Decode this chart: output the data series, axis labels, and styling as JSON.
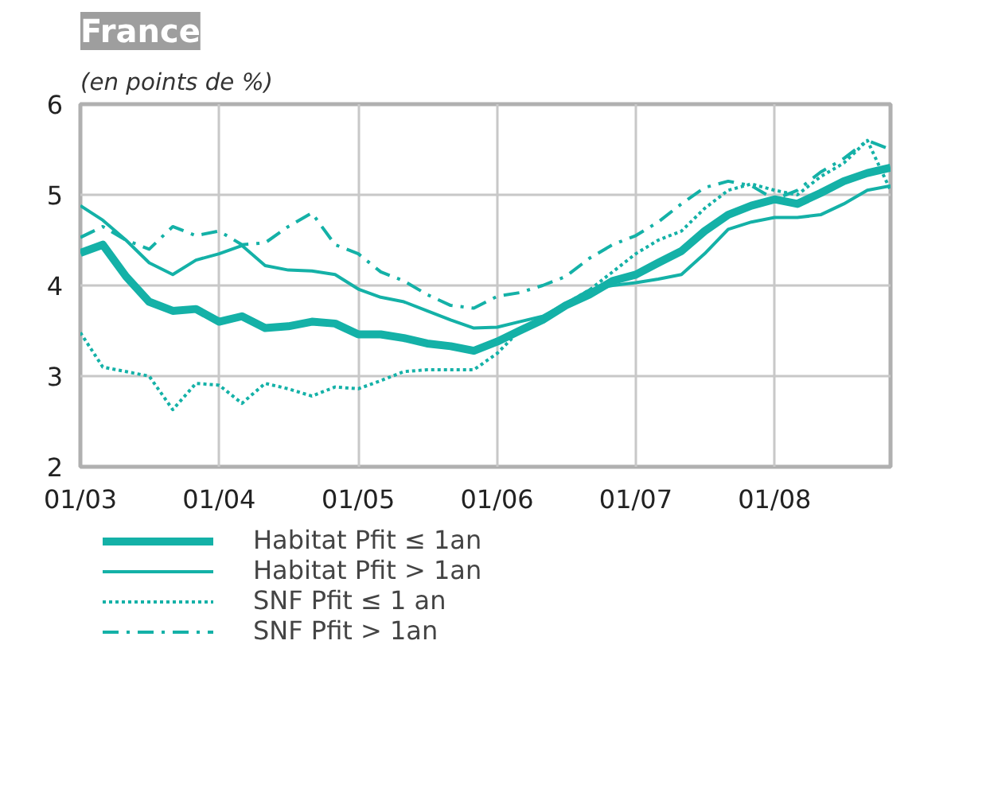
{
  "chart_data": {
    "type": "line",
    "title": "France",
    "subtitle": "(en points de %)",
    "x": [
      "2003-01",
      "2003-03",
      "2003-05",
      "2003-07",
      "2003-09",
      "2003-11",
      "2004-01",
      "2004-03",
      "2004-05",
      "2004-07",
      "2004-09",
      "2004-11",
      "2005-01",
      "2005-03",
      "2005-05",
      "2005-07",
      "2005-09",
      "2005-11",
      "2006-01",
      "2006-03",
      "2006-05",
      "2006-07",
      "2006-09",
      "2006-11",
      "2007-01",
      "2007-03",
      "2007-05",
      "2007-07",
      "2007-09",
      "2007-11",
      "2008-01",
      "2008-03",
      "2008-05",
      "2008-07",
      "2008-09",
      "2008-11"
    ],
    "series": [
      {
        "name": "Habitat Pfit ≤ 1an",
        "color": "#14b1a7",
        "line_style": "solid",
        "values": [
          4.36,
          4.45,
          4.1,
          3.82,
          3.72,
          3.74,
          3.6,
          3.66,
          3.53,
          3.55,
          3.6,
          3.58,
          3.46,
          3.46,
          3.42,
          3.36,
          3.33,
          3.28,
          3.38,
          3.5,
          3.62,
          3.78,
          3.9,
          4.05,
          4.12,
          4.25,
          4.38,
          4.6,
          4.78,
          4.88,
          4.95,
          4.9,
          5.02,
          5.15,
          5.24,
          5.3
        ]
      },
      {
        "name": "Habitat Pfit > 1an",
        "color": "#14b1a7",
        "line_style": "solid",
        "values": [
          4.88,
          4.72,
          4.5,
          4.25,
          4.12,
          4.28,
          4.35,
          4.44,
          4.22,
          4.17,
          4.16,
          4.12,
          3.96,
          3.87,
          3.82,
          3.72,
          3.62,
          3.53,
          3.54,
          3.6,
          3.66,
          3.8,
          3.95,
          4.0,
          4.03,
          4.07,
          4.12,
          4.35,
          4.62,
          4.7,
          4.75,
          4.75,
          4.78,
          4.9,
          5.05,
          5.1
        ]
      },
      {
        "name": "SNF Pfit ≤ 1 an",
        "color": "#14b1a7",
        "line_style": "dotted",
        "values": [
          3.48,
          3.1,
          3.05,
          3.0,
          2.63,
          2.92,
          2.9,
          2.7,
          2.92,
          2.86,
          2.78,
          2.88,
          2.86,
          2.95,
          3.05,
          3.07,
          3.07,
          3.07,
          3.25,
          3.5,
          3.65,
          3.8,
          3.95,
          4.15,
          4.35,
          4.5,
          4.6,
          4.85,
          5.05,
          5.12,
          5.05,
          5.0,
          5.2,
          5.35,
          5.6,
          5.05
        ]
      },
      {
        "name": "SNF Pfit > 1an",
        "color": "#14b1a7",
        "line_style": "dashed",
        "values": [
          4.53,
          4.65,
          4.5,
          4.4,
          4.65,
          4.55,
          4.6,
          4.45,
          4.47,
          4.65,
          4.8,
          4.45,
          4.35,
          4.15,
          4.05,
          3.9,
          3.78,
          3.75,
          3.88,
          3.92,
          4.0,
          4.1,
          4.3,
          4.45,
          4.55,
          4.7,
          4.9,
          5.08,
          5.15,
          5.1,
          4.95,
          5.05,
          5.25,
          5.4,
          5.6,
          5.5
        ]
      }
    ],
    "xlim": [
      "2003-01",
      "2008-11"
    ],
    "xticks": [
      {
        "value": "2003-01",
        "label": "01/03"
      },
      {
        "value": "2004-01",
        "label": "01/04"
      },
      {
        "value": "2005-01",
        "label": "01/05"
      },
      {
        "value": "2006-01",
        "label": "01/06"
      },
      {
        "value": "2007-01",
        "label": "01/07"
      },
      {
        "value": "2008-01",
        "label": "01/08"
      }
    ],
    "ylim": [
      2,
      6
    ],
    "yticks": [
      2,
      3,
      4,
      5,
      6
    ],
    "grid": true,
    "legend": "bottom",
    "marker": "none"
  }
}
